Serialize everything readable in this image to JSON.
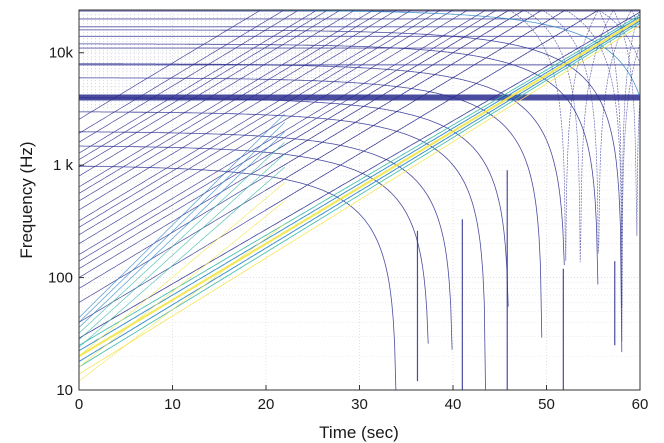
{
  "chart_data": {
    "type": "contour",
    "xlabel": "Time (sec)",
    "ylabel": "Frequency (Hz)",
    "xlim": [
      0,
      60
    ],
    "ylim": [
      10,
      24000
    ],
    "yscale": "log",
    "grid": true,
    "x_ticks": [
      0,
      10,
      20,
      30,
      40,
      50,
      60
    ],
    "x_tick_labels": [
      "0",
      "10",
      "20",
      "30",
      "40",
      "50",
      "60"
    ],
    "y_ticks": [
      10,
      100,
      1000,
      10000
    ],
    "y_tick_labels": [
      "10",
      "100",
      "1 k",
      "10k"
    ],
    "colors": {
      "low": "#2b2d8f",
      "mid": "#2a86c8",
      "high": "#36b9a6",
      "peak": "#f2e64a",
      "grid": "#d9d9d9"
    },
    "sweep": {
      "description_free": true,
      "start_hz": 20,
      "end_hz": 20000,
      "duration_s": 60,
      "harmonics": [
        2,
        3,
        4,
        5,
        6,
        7,
        8,
        10,
        12,
        14,
        16,
        20,
        24,
        28,
        32,
        40,
        48,
        56,
        64,
        80,
        96,
        128
      ],
      "aliases": [
        1,
        2,
        3,
        4,
        6,
        8,
        12,
        16,
        24,
        32,
        48
      ],
      "tones_hz": [
        23500,
        20000,
        17000,
        14000,
        11000,
        7800,
        4000
      ]
    }
  }
}
